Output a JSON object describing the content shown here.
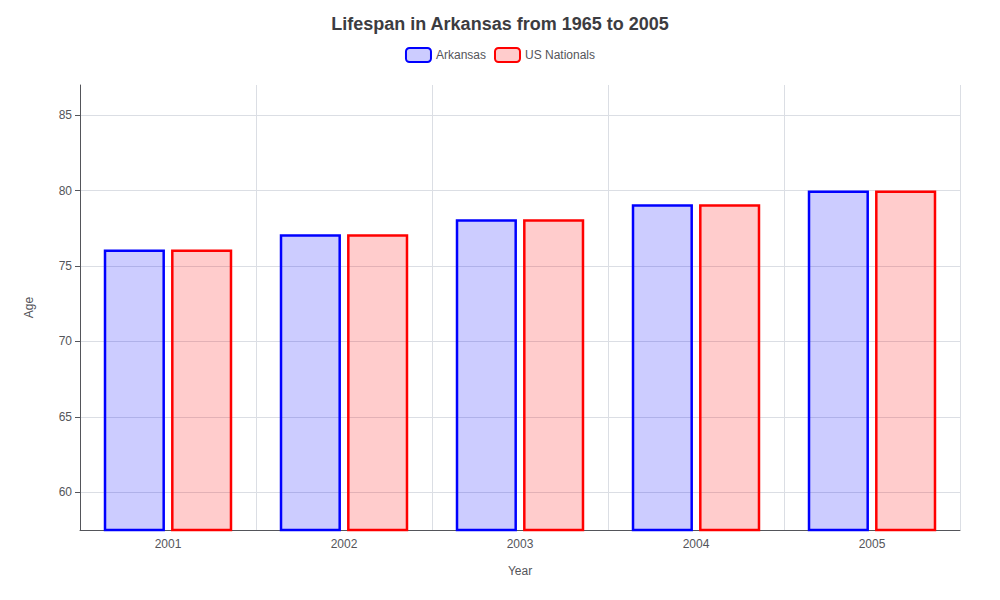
{
  "chart_data": {
    "type": "bar",
    "title": "Lifespan in Arkansas from 1965 to 2005",
    "x_label": "Year",
    "y_label": "Age",
    "categories": [
      "2001",
      "2002",
      "2003",
      "2004",
      "2005"
    ],
    "series": [
      {
        "name": "Arkansas",
        "color": "#0000ff",
        "values": [
          76.1,
          77.1,
          78.1,
          79.1,
          80.0
        ]
      },
      {
        "name": "US Nationals",
        "color": "#ff0000",
        "values": [
          76.1,
          77.1,
          78.1,
          79.1,
          80.0
        ]
      }
    ],
    "ylim": [
      57.5,
      87
    ],
    "yticks": [
      60,
      65,
      70,
      75,
      80,
      85
    ],
    "grid": true,
    "legend": "top"
  }
}
